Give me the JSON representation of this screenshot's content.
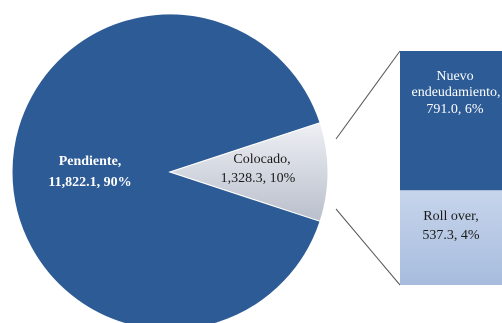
{
  "chart_data": {
    "type": "pie",
    "title": "",
    "slices": [
      {
        "label": "Pendiente,",
        "value_text": "11,822.1, 90%",
        "value": 11822.1,
        "percent": 90,
        "color": "#2d5b96",
        "text_color": "#ffffff"
      },
      {
        "label": "Colocado,",
        "value_text": "1,328.3, 10%",
        "value": 1328.3,
        "percent": 10,
        "color": "#c9cdd8",
        "text_color": "#1a1a1a"
      }
    ],
    "breakdown_of": "Colocado",
    "breakdown": [
      {
        "label_line1": "Nuevo",
        "label_line2": "endeudamiento,",
        "value_text": "791.0, 6%",
        "value": 791.0,
        "percent": 6,
        "color": "#2d5b96",
        "text_color": "#ffffff"
      },
      {
        "label_line1": "Roll over,",
        "value_text": "537.3, 4%",
        "value": 537.3,
        "percent": 4,
        "color": "#b7c8e4",
        "text_color": "#1a1a1a"
      }
    ],
    "connector_color": "#555555"
  }
}
